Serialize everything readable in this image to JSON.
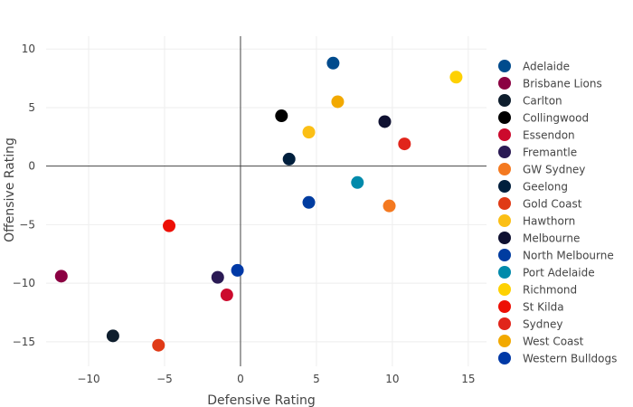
{
  "chart_data": {
    "type": "scatter",
    "title": "",
    "xlabel": "Defensive Rating",
    "ylabel": "Offensive Rating",
    "xlim": [
      -12.8,
      16.2
    ],
    "ylim": [
      -17.1,
      11.1
    ],
    "xticks": [
      -10,
      -5,
      0,
      5,
      10,
      15
    ],
    "yticks": [
      -15,
      -10,
      -5,
      0,
      5,
      10
    ],
    "xtick_labels": [
      "−10",
      "−5",
      "0",
      "5",
      "10",
      "15"
    ],
    "ytick_labels": [
      "−15",
      "−10",
      "−5",
      "0",
      "5",
      "10"
    ],
    "grid": true,
    "zero_lines": true,
    "legend_position": "right",
    "series": [
      {
        "name": "Adelaide",
        "color": "#004b8d",
        "x": [
          6.1
        ],
        "y": [
          8.8
        ]
      },
      {
        "name": "Brisbane Lions",
        "color": "#8b0042",
        "x": [
          -11.8
        ],
        "y": [
          -9.4
        ]
      },
      {
        "name": "Carlton",
        "color": "#0e1e2d",
        "x": [
          -8.4
        ],
        "y": [
          -14.5
        ]
      },
      {
        "name": "Collingwood",
        "color": "#000000",
        "x": [
          2.7
        ],
        "y": [
          4.3
        ]
      },
      {
        "name": "Essendon",
        "color": "#cc0a2d",
        "x": [
          -0.9
        ],
        "y": [
          -11.0
        ]
      },
      {
        "name": "Fremantle",
        "color": "#2a1a54",
        "x": [
          -1.5
        ],
        "y": [
          -9.5
        ]
      },
      {
        "name": "GW Sydney",
        "color": "#f47920",
        "x": [
          9.8
        ],
        "y": [
          -3.4
        ]
      },
      {
        "name": "Geelong",
        "color": "#001f3d",
        "x": [
          3.2
        ],
        "y": [
          0.6
        ]
      },
      {
        "name": "Gold Coast",
        "color": "#e03a16",
        "x": [
          -5.4
        ],
        "y": [
          -15.3
        ]
      },
      {
        "name": "Hawthorn",
        "color": "#fbbf15",
        "x": [
          4.5
        ],
        "y": [
          2.9
        ]
      },
      {
        "name": "Melbourne",
        "color": "#0f1131",
        "x": [
          9.5
        ],
        "y": [
          3.8
        ]
      },
      {
        "name": "North Melbourne",
        "color": "#003ca0",
        "x": [
          4.5
        ],
        "y": [
          -3.1
        ]
      },
      {
        "name": "Port Adelaide",
        "color": "#008aab",
        "x": [
          7.7
        ],
        "y": [
          -1.4
        ]
      },
      {
        "name": "Richmond",
        "color": "#fed102",
        "x": [
          14.2
        ],
        "y": [
          7.6
        ]
      },
      {
        "name": "St Kilda",
        "color": "#ed0f05",
        "x": [
          -4.7
        ],
        "y": [
          -5.1
        ]
      },
      {
        "name": "Sydney",
        "color": "#e1251b",
        "x": [
          10.8
        ],
        "y": [
          1.9
        ]
      },
      {
        "name": "West Coast",
        "color": "#f2a900",
        "x": [
          6.4
        ],
        "y": [
          5.5
        ]
      },
      {
        "name": "Western Bulldogs",
        "color": "#0039a6",
        "x": [
          -0.2
        ],
        "y": [
          -8.9
        ]
      }
    ]
  }
}
